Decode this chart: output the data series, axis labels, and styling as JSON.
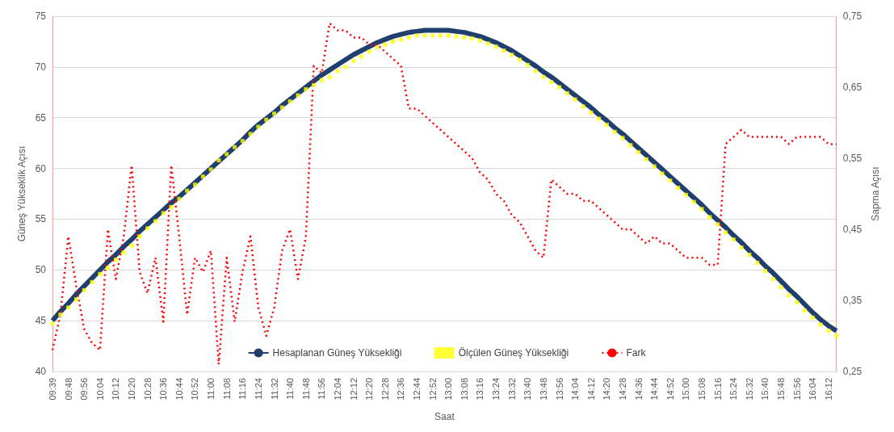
{
  "chart_data": {
    "type": "line",
    "xlabel": "Saat",
    "ylabel": "Güneş Yükseklik Açısı",
    "y2label": "Sapma Açısı",
    "categories": [
      "09:39",
      null,
      "09:48",
      null,
      "09:56",
      null,
      "10:04",
      null,
      "10:12",
      null,
      "10:20",
      null,
      "10:28",
      null,
      "10:36",
      null,
      "10:44",
      null,
      "10:52",
      null,
      "11:00",
      null,
      "11:08",
      null,
      "11:16",
      null,
      "11:24",
      null,
      "11:32",
      null,
      "11:40",
      null,
      "11:48",
      null,
      "11:56",
      null,
      "12:04",
      null,
      "12:12",
      null,
      "12:20",
      null,
      "12:28",
      null,
      "12:36",
      null,
      "12:44",
      null,
      "12:52",
      null,
      "13:00",
      null,
      "13:08",
      null,
      "13:16",
      null,
      "13:24",
      null,
      "13:32",
      null,
      "13:40",
      null,
      "13:48",
      null,
      "13:56",
      null,
      "14:04",
      null,
      "14:12",
      null,
      "14:20",
      null,
      "14:28",
      null,
      "14:36",
      null,
      "14:44",
      null,
      "14:52",
      null,
      "15:00",
      null,
      "15:08",
      null,
      "15:16",
      null,
      "15:24",
      null,
      "15:32",
      null,
      "15:40",
      null,
      "15:48",
      null,
      "15:56",
      null,
      "16:04",
      null,
      "16:12",
      null
    ],
    "series": [
      {
        "name": "Hesaplanan Güneş Yüksekliği",
        "color": "#1f3f6e",
        "marker": "none",
        "line_style": "solid",
        "values": [
          45.0,
          45.9,
          46.7,
          47.6,
          48.4,
          49.2,
          50.0,
          50.8,
          51.5,
          52.3,
          53.0,
          53.8,
          54.5,
          55.2,
          55.9,
          56.6,
          57.2,
          57.9,
          58.6,
          59.3,
          60.0,
          60.7,
          61.4,
          62.1,
          62.8,
          63.6,
          64.3,
          64.9,
          65.5,
          66.2,
          66.8,
          67.4,
          68.0,
          68.6,
          69.2,
          69.7,
          70.2,
          70.7,
          71.2,
          71.6,
          72.0,
          72.4,
          72.7,
          73.0,
          73.2,
          73.4,
          73.5,
          73.6,
          73.6,
          73.6,
          73.6,
          73.5,
          73.4,
          73.2,
          73.0,
          72.7,
          72.4,
          72.0,
          71.6,
          71.1,
          70.6,
          70.1,
          69.5,
          69.0,
          68.4,
          67.8,
          67.2,
          66.6,
          66.0,
          65.3,
          64.7,
          64.0,
          63.4,
          62.7,
          62.0,
          61.3,
          60.6,
          59.9,
          59.2,
          58.5,
          57.8,
          57.1,
          56.4,
          55.6,
          54.9,
          54.2,
          53.4,
          52.7,
          51.9,
          51.2,
          50.4,
          49.7,
          48.9,
          48.1,
          47.4,
          46.6,
          45.8,
          45.1,
          44.5,
          44.0
        ]
      },
      {
        "name": "Ölçülen Güneş Yüksekliği",
        "color": "#ffff00",
        "type": "scatter",
        "marker": "square",
        "values": [
          44.7,
          45.6,
          46.3,
          47.1,
          48.0,
          48.8,
          49.6,
          50.2,
          51.0,
          51.7,
          52.4,
          53.3,
          54.1,
          54.8,
          55.6,
          56.2,
          57.0,
          57.8,
          58.4,
          59.2,
          59.9,
          60.8,
          61.4,
          62.1,
          62.7,
          63.4,
          64.1,
          64.8,
          65.4,
          66.0,
          66.6,
          67.2,
          67.8,
          68.2,
          68.7,
          69.0,
          69.6,
          70.0,
          70.6,
          71.0,
          71.5,
          71.9,
          72.2,
          72.5,
          72.7,
          72.9,
          73.1,
          73.1,
          73.1,
          73.1,
          73.1,
          73.0,
          72.9,
          72.8,
          72.6,
          72.3,
          72.0,
          71.6,
          71.2,
          70.7,
          70.2,
          69.6,
          69.0,
          68.5,
          68.0,
          67.4,
          66.8,
          66.1,
          65.5,
          64.9,
          64.3,
          63.6,
          63.0,
          62.3,
          61.6,
          60.9,
          60.2,
          59.5,
          58.8,
          58.1,
          57.4,
          56.7,
          56.0,
          55.2,
          54.5,
          53.7,
          53.0,
          52.2,
          51.5,
          50.7,
          49.9,
          49.1,
          48.3,
          47.5,
          46.8,
          46.0,
          45.3,
          44.6,
          44.0,
          43.5
        ]
      },
      {
        "name": "Fark",
        "color": "#ff0000",
        "axis": "y2",
        "marker": "none",
        "line_style": "dotted",
        "values": [
          0.28,
          0.33,
          0.44,
          0.37,
          0.31,
          0.29,
          0.28,
          0.45,
          0.38,
          0.44,
          0.54,
          0.39,
          0.36,
          0.41,
          0.32,
          0.54,
          0.44,
          0.33,
          0.41,
          0.39,
          0.42,
          0.26,
          0.41,
          0.32,
          0.39,
          0.44,
          0.34,
          0.3,
          0.34,
          0.42,
          0.45,
          0.38,
          0.44,
          0.68,
          0.67,
          0.74,
          0.73,
          0.73,
          0.72,
          0.72,
          0.71,
          0.71,
          0.7,
          0.69,
          0.68,
          0.62,
          0.62,
          0.61,
          0.6,
          0.59,
          0.58,
          0.57,
          0.56,
          0.55,
          0.53,
          0.52,
          0.5,
          0.49,
          0.47,
          0.46,
          0.44,
          0.42,
          0.41,
          0.52,
          0.51,
          0.5,
          0.5,
          0.49,
          0.49,
          0.48,
          0.47,
          0.46,
          0.45,
          0.45,
          0.44,
          0.43,
          0.44,
          0.43,
          0.43,
          0.42,
          0.41,
          0.41,
          0.41,
          0.4,
          0.4,
          0.57,
          0.58,
          0.59,
          0.58,
          0.58,
          0.58,
          0.58,
          0.58,
          0.57,
          0.58,
          0.58,
          0.58,
          0.58,
          0.57,
          0.57
        ]
      }
    ],
    "ylim": [
      40,
      75
    ],
    "yticks": [
      40,
      45,
      50,
      55,
      60,
      65,
      70,
      75
    ],
    "y2lim": [
      0.25,
      0.75
    ],
    "y2ticks": [
      {
        "value": 0.25,
        "label": "0,25"
      },
      {
        "value": 0.35,
        "label": "0,35"
      },
      {
        "value": 0.45,
        "label": "0,45"
      },
      {
        "value": 0.55,
        "label": "0,55"
      },
      {
        "value": 0.65,
        "label": "0,65"
      },
      {
        "value": 0.75,
        "label": "0,75"
      }
    ],
    "grid": "y",
    "legend": "bottom"
  }
}
